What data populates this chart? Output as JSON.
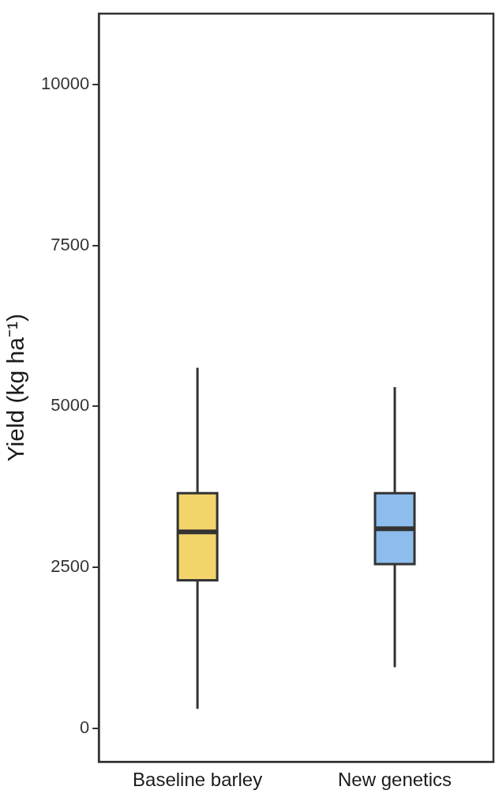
{
  "chart_data": {
    "type": "box",
    "ylabel": "Yield (kg ha⁻¹)",
    "categories": [
      "Baseline barley",
      "New genetics"
    ],
    "boxes": [
      {
        "low": 300,
        "q1": 2300,
        "median": 3050,
        "q3": 3650,
        "high": 5600
      },
      {
        "low": 950,
        "q1": 2550,
        "median": 3100,
        "q3": 3650,
        "high": 5300
      }
    ],
    "colors": [
      "#f2d46b",
      "#8dbdec"
    ],
    "ylim": [
      -520,
      11100
    ],
    "yticks": [
      0,
      2500,
      5000,
      7500,
      10000
    ],
    "grid": false,
    "legend": false
  }
}
